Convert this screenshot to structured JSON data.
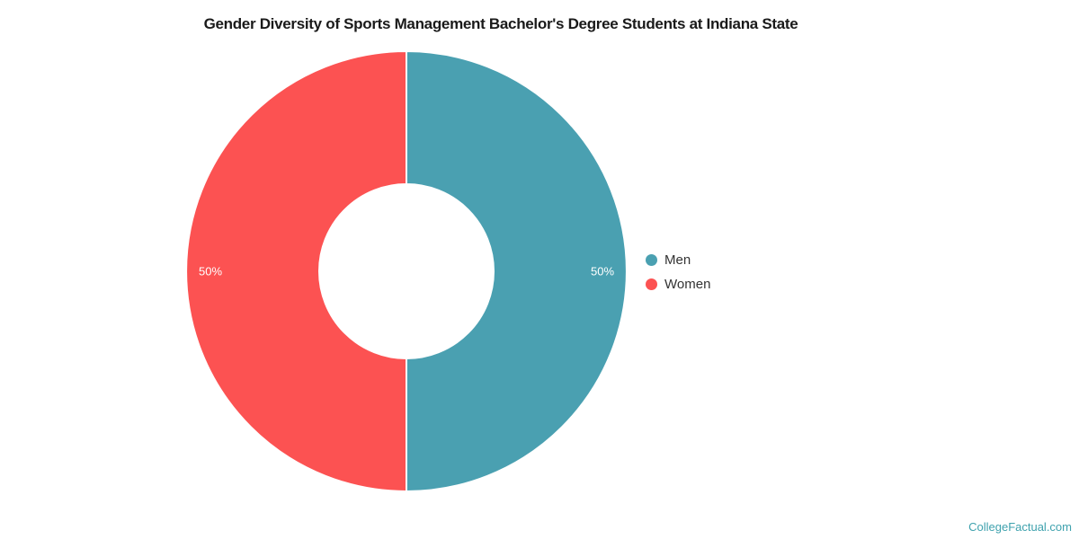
{
  "chart": {
    "title": "Gender Diversity of Sports Management Bachelor's Degree Students at Indiana State"
  },
  "chart_data": {
    "type": "pie",
    "subtype": "donut",
    "title": "Gender Diversity of Sports Management Bachelor's Degree Students at Indiana State",
    "start_angle": "top",
    "direction": "clockwise",
    "legend_position": "right",
    "series": [
      {
        "name": "Men",
        "value": 50,
        "label": "50%",
        "color": "#4AA0B1"
      },
      {
        "name": "Women",
        "value": 50,
        "label": "50%",
        "color": "#FC5252"
      }
    ],
    "slice_border_color": "#ffffff",
    "label_color": "#ffffff"
  },
  "watermark": {
    "text": "CollegeFactual.com",
    "color": "#3FA2AE"
  }
}
